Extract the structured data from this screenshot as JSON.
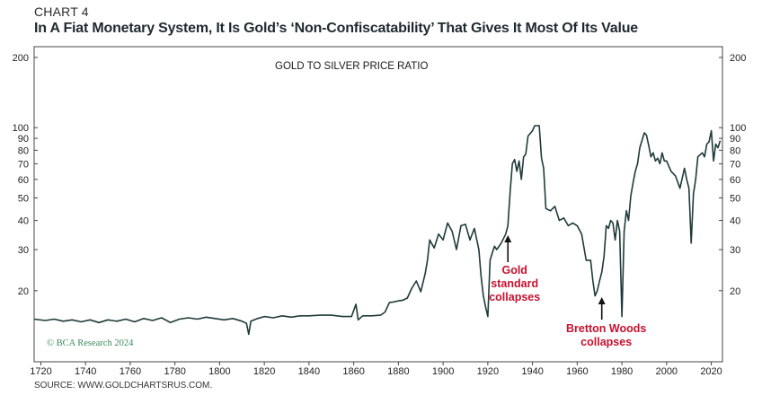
{
  "header": {
    "chart_label": "CHART 4",
    "title": "In A Fiat Monetary System, It Is Gold’s ‘Non-Confiscatability’ That Gives It Most Of Its Value"
  },
  "footer": {
    "source": "SOURCE: WWW.GOLDCHARTSRUS.COM."
  },
  "colors": {
    "line": "#1f3a3a",
    "annotation": "#c8102e",
    "copyright": "#3a8a5a"
  },
  "chart_data": {
    "type": "line",
    "title": "GOLD TO SILVER PRICE RATIO",
    "copyright": "© BCA Research 2024",
    "yscale": "log",
    "ylim": [
      10,
      200
    ],
    "xlim": [
      1717,
      2025
    ],
    "y_ticks": [
      {
        "value": 200,
        "label": "200"
      },
      {
        "value": 100,
        "label": "100"
      },
      {
        "value": 90,
        "label": "90"
      },
      {
        "value": 80,
        "label": "80"
      },
      {
        "value": 70,
        "label": "70"
      },
      {
        "value": 60,
        "label": "60"
      },
      {
        "value": 50,
        "label": "50"
      },
      {
        "value": 40,
        "label": "40"
      },
      {
        "value": 30,
        "label": "30"
      },
      {
        "value": 20,
        "label": "20"
      }
    ],
    "x_ticks": [
      {
        "value": 1720,
        "label": "1720"
      },
      {
        "value": 1740,
        "label": "1740"
      },
      {
        "value": 1760,
        "label": "1760"
      },
      {
        "value": 1780,
        "label": "1780"
      },
      {
        "value": 1800,
        "label": "1800"
      },
      {
        "value": 1820,
        "label": "1820"
      },
      {
        "value": 1840,
        "label": "1840"
      },
      {
        "value": 1860,
        "label": "1860"
      },
      {
        "value": 1880,
        "label": "1880"
      },
      {
        "value": 1900,
        "label": "1900"
      },
      {
        "value": 1920,
        "label": "1920"
      },
      {
        "value": 1940,
        "label": "1940"
      },
      {
        "value": 1960,
        "label": "1960"
      },
      {
        "value": 1980,
        "label": "1980"
      },
      {
        "value": 2000,
        "label": "2000"
      },
      {
        "value": 2020,
        "label": "2020"
      }
    ],
    "series": [
      {
        "name": "Gold to silver price ratio",
        "points": [
          [
            1717,
            15.1
          ],
          [
            1722,
            14.9
          ],
          [
            1726,
            15.1
          ],
          [
            1730,
            14.8
          ],
          [
            1734,
            15.0
          ],
          [
            1738,
            14.7
          ],
          [
            1742,
            15.0
          ],
          [
            1746,
            14.6
          ],
          [
            1750,
            15.0
          ],
          [
            1754,
            14.8
          ],
          [
            1758,
            15.1
          ],
          [
            1762,
            14.7
          ],
          [
            1766,
            15.2
          ],
          [
            1770,
            14.9
          ],
          [
            1774,
            15.3
          ],
          [
            1778,
            14.6
          ],
          [
            1782,
            15.1
          ],
          [
            1786,
            15.3
          ],
          [
            1790,
            15.1
          ],
          [
            1794,
            15.4
          ],
          [
            1798,
            15.2
          ],
          [
            1802,
            15.0
          ],
          [
            1806,
            15.2
          ],
          [
            1810,
            14.8
          ],
          [
            1812,
            14.5
          ],
          [
            1813,
            13.0
          ],
          [
            1814,
            14.8
          ],
          [
            1817,
            15.2
          ],
          [
            1820,
            15.5
          ],
          [
            1824,
            15.3
          ],
          [
            1828,
            15.6
          ],
          [
            1832,
            15.4
          ],
          [
            1836,
            15.6
          ],
          [
            1840,
            15.6
          ],
          [
            1845,
            15.7
          ],
          [
            1850,
            15.7
          ],
          [
            1855,
            15.5
          ],
          [
            1859,
            15.5
          ],
          [
            1861,
            17.5
          ],
          [
            1862,
            15.0
          ],
          [
            1864,
            15.6
          ],
          [
            1868,
            15.6
          ],
          [
            1872,
            15.7
          ],
          [
            1874,
            16.2
          ],
          [
            1876,
            17.8
          ],
          [
            1878,
            17.9
          ],
          [
            1880,
            18.1
          ],
          [
            1882,
            18.2
          ],
          [
            1884,
            18.6
          ],
          [
            1886,
            20.5
          ],
          [
            1888,
            22.0
          ],
          [
            1890,
            19.8
          ],
          [
            1892,
            23.7
          ],
          [
            1893,
            27.0
          ],
          [
            1894,
            33.0
          ],
          [
            1896,
            30.5
          ],
          [
            1898,
            35.0
          ],
          [
            1900,
            33.0
          ],
          [
            1902,
            39.0
          ],
          [
            1904,
            36.0
          ],
          [
            1906,
            30.0
          ],
          [
            1908,
            38.0
          ],
          [
            1910,
            38.5
          ],
          [
            1912,
            33.0
          ],
          [
            1914,
            37.0
          ],
          [
            1916,
            30.0
          ],
          [
            1917,
            23.0
          ],
          [
            1918,
            19.0
          ],
          [
            1919,
            17.0
          ],
          [
            1920,
            15.5
          ],
          [
            1921,
            27.0
          ],
          [
            1922,
            29.0
          ],
          [
            1923,
            31.0
          ],
          [
            1924,
            30.0
          ],
          [
            1926,
            32.0
          ],
          [
            1928,
            35.0
          ],
          [
            1929,
            38.0
          ],
          [
            1930,
            53.0
          ],
          [
            1931,
            70.0
          ],
          [
            1932,
            73.0
          ],
          [
            1933,
            65.0
          ],
          [
            1934,
            72.0
          ],
          [
            1935,
            60.0
          ],
          [
            1936,
            75.0
          ],
          [
            1937,
            77.0
          ],
          [
            1938,
            92.0
          ],
          [
            1940,
            97.0
          ],
          [
            1941,
            102.0
          ],
          [
            1942,
            102.0
          ],
          [
            1943,
            102.0
          ],
          [
            1944,
            74.0
          ],
          [
            1945,
            67.0
          ],
          [
            1946,
            45.0
          ],
          [
            1948,
            44.0
          ],
          [
            1950,
            46.0
          ],
          [
            1952,
            40.0
          ],
          [
            1954,
            41.0
          ],
          [
            1956,
            38.0
          ],
          [
            1958,
            39.0
          ],
          [
            1960,
            38.0
          ],
          [
            1962,
            35.0
          ],
          [
            1964,
            27.0
          ],
          [
            1966,
            27.0
          ],
          [
            1967,
            22.0
          ],
          [
            1968,
            19.0
          ],
          [
            1969,
            20.0
          ],
          [
            1970,
            22.0
          ],
          [
            1971,
            24.0
          ],
          [
            1972,
            28.0
          ],
          [
            1973,
            38.0
          ],
          [
            1974,
            37.0
          ],
          [
            1975,
            40.0
          ],
          [
            1976,
            39.0
          ],
          [
            1977,
            33.0
          ],
          [
            1978,
            40.0
          ],
          [
            1979,
            36.0
          ],
          [
            1980,
            15.5
          ],
          [
            1981,
            36.0
          ],
          [
            1982,
            44.0
          ],
          [
            1983,
            40.0
          ],
          [
            1984,
            51.0
          ],
          [
            1985,
            58.0
          ],
          [
            1986,
            65.0
          ],
          [
            1987,
            70.0
          ],
          [
            1988,
            82.0
          ],
          [
            1990,
            95.0
          ],
          [
            1991,
            93.0
          ],
          [
            1992,
            84.0
          ],
          [
            1993,
            75.0
          ],
          [
            1994,
            78.0
          ],
          [
            1995,
            72.0
          ],
          [
            1996,
            74.0
          ],
          [
            1997,
            70.0
          ],
          [
            1998,
            78.0
          ],
          [
            1999,
            72.0
          ],
          [
            2000,
            72.0
          ],
          [
            2002,
            65.0
          ],
          [
            2004,
            62.0
          ],
          [
            2006,
            55.0
          ],
          [
            2008,
            67.0
          ],
          [
            2009,
            60.0
          ],
          [
            2010,
            55.0
          ],
          [
            2011,
            32.0
          ],
          [
            2012,
            52.0
          ],
          [
            2013,
            60.0
          ],
          [
            2014,
            75.0
          ],
          [
            2016,
            78.0
          ],
          [
            2017,
            75.0
          ],
          [
            2018,
            85.0
          ],
          [
            2019,
            87.0
          ],
          [
            2020,
            97.0
          ],
          [
            2021,
            72.0
          ],
          [
            2022,
            85.0
          ],
          [
            2023,
            82.0
          ],
          [
            2024,
            88.0
          ]
        ]
      }
    ],
    "annotations": [
      {
        "lines": [
          "Gold",
          "standard",
          "collapses"
        ],
        "arrow_year": 1929,
        "text_year": 1932
      },
      {
        "lines": [
          "Bretton Woods",
          "collapses"
        ],
        "arrow_year": 1971,
        "text_year": 1973
      }
    ]
  }
}
